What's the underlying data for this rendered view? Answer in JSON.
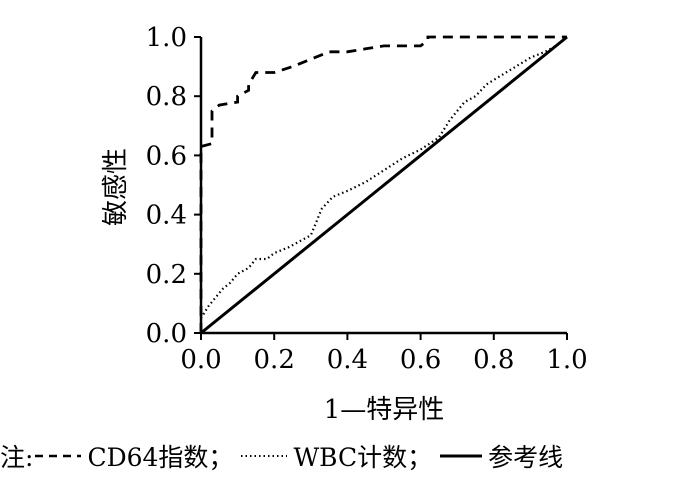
{
  "chart_data": {
    "type": "line",
    "title": "",
    "xlabel": "1—特异性",
    "ylabel": "敏感性",
    "xlim": [
      0,
      1
    ],
    "ylim": [
      0,
      1
    ],
    "xticks": [
      "0.0",
      "0.2",
      "0.4",
      "0.6",
      "0.8",
      "1.0"
    ],
    "yticks": [
      "0.0",
      "0.2",
      "0.4",
      "0.6",
      "0.8",
      "1.0"
    ],
    "grid": false,
    "legend_position": "bottom",
    "series": [
      {
        "name": "CD64指数",
        "style": "dashed",
        "color": "#000000",
        "x": [
          0,
          0,
          0.03,
          0.03,
          0.05,
          0.1,
          0.1,
          0.13,
          0.13,
          0.15,
          0.15,
          0.2,
          0.25,
          0.35,
          0.4,
          0.45,
          0.5,
          0.6,
          0.62,
          0.62,
          0.7,
          0.85,
          1.0
        ],
        "y": [
          0,
          0.63,
          0.64,
          0.75,
          0.77,
          0.78,
          0.8,
          0.82,
          0.84,
          0.88,
          0.88,
          0.88,
          0.9,
          0.95,
          0.95,
          0.96,
          0.97,
          0.97,
          0.99,
          1.0,
          1.0,
          1.0,
          1.0
        ]
      },
      {
        "name": "WBC计数",
        "style": "dotted",
        "color": "#000000",
        "x": [
          0,
          0.02,
          0.04,
          0.06,
          0.08,
          0.1,
          0.13,
          0.15,
          0.18,
          0.2,
          0.24,
          0.27,
          0.3,
          0.33,
          0.36,
          0.4,
          0.45,
          0.5,
          0.55,
          0.6,
          0.65,
          0.68,
          0.72,
          0.75,
          0.78,
          0.82,
          0.86,
          0.9,
          0.94,
          0.97,
          1.0
        ],
        "y": [
          0.05,
          0.09,
          0.12,
          0.15,
          0.17,
          0.2,
          0.22,
          0.25,
          0.25,
          0.27,
          0.29,
          0.31,
          0.33,
          0.42,
          0.46,
          0.48,
          0.51,
          0.55,
          0.59,
          0.62,
          0.66,
          0.72,
          0.78,
          0.8,
          0.84,
          0.87,
          0.9,
          0.93,
          0.95,
          0.97,
          1.0
        ]
      },
      {
        "name": "参考线",
        "style": "solid",
        "color": "#000000",
        "x": [
          0,
          1
        ],
        "y": [
          0,
          1
        ]
      }
    ]
  },
  "legend": {
    "prefix": "注:",
    "separator": "；",
    "items": [
      {
        "label": "CD64指数",
        "style": "dashed"
      },
      {
        "label": "WBC计数",
        "style": "dotted"
      },
      {
        "label": "参考线",
        "style": "solid"
      }
    ]
  }
}
